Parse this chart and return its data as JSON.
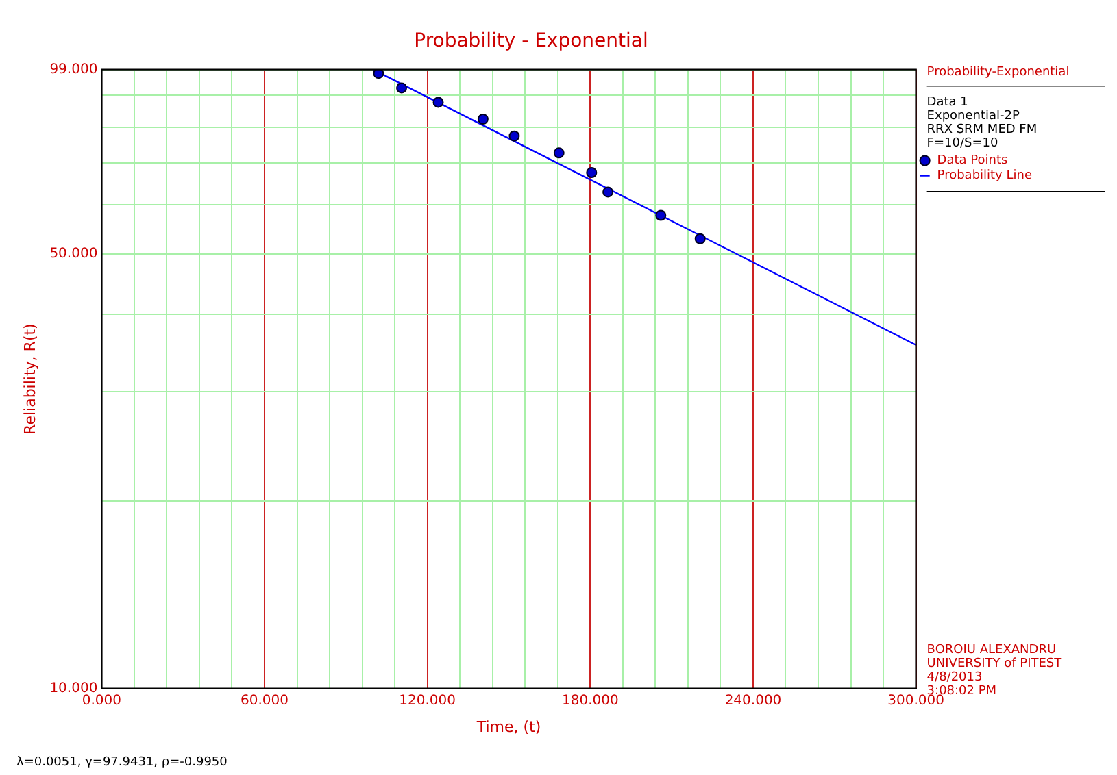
{
  "chart_data": {
    "type": "scatter",
    "title": "Probability - Exponential",
    "xlabel": "Time, (t)",
    "ylabel": "Reliability, R(t)",
    "legend_title": "Probability-Exponential",
    "annotations": [
      "Data 1",
      "Exponential-2P",
      "RRX SRM MED FM",
      "F=10/S=10",
      "BOROIU ALEXANDRU",
      "UNIVERSITY of PITEST",
      "4/8/2013",
      "3:08:02 PM",
      "λ=0.0051, γ=97.9431, ρ=-0.9950"
    ],
    "log": "y",
    "grid": true,
    "legend": "right",
    "xlim": [
      0,
      300
    ],
    "xticks": [
      {
        "value": 0,
        "label": "0.000"
      },
      {
        "value": 12,
        "label": null
      },
      {
        "value": 24,
        "label": null
      },
      {
        "value": 36,
        "label": null
      },
      {
        "value": 48,
        "label": null
      },
      {
        "value": 60,
        "label": "60.000"
      },
      {
        "value": 72,
        "label": null
      },
      {
        "value": 84,
        "label": null
      },
      {
        "value": 96,
        "label": null
      },
      {
        "value": 108,
        "label": null
      },
      {
        "value": 120,
        "label": "120.000"
      },
      {
        "value": 132,
        "label": null
      },
      {
        "value": 144,
        "label": null
      },
      {
        "value": 156,
        "label": null
      },
      {
        "value": 168,
        "label": null
      },
      {
        "value": 180,
        "label": "180.000"
      },
      {
        "value": 192,
        "label": null
      },
      {
        "value": 204,
        "label": null
      },
      {
        "value": 216,
        "label": null
      },
      {
        "value": 228,
        "label": null
      },
      {
        "value": 240,
        "label": "240.000"
      },
      {
        "value": 252,
        "label": null
      },
      {
        "value": 264,
        "label": null
      },
      {
        "value": 276,
        "label": null
      },
      {
        "value": 288,
        "label": null
      },
      {
        "value": 300,
        "label": "300.000"
      }
    ],
    "ylim": [
      10,
      99
    ],
    "yticks": [
      {
        "value": 10,
        "label": "10.000"
      },
      {
        "value": 20,
        "label": null
      },
      {
        "value": 30,
        "label": null
      },
      {
        "value": 40,
        "label": null
      },
      {
        "value": 50,
        "label": "50.000"
      },
      {
        "value": 60,
        "label": null
      },
      {
        "value": 70,
        "label": null
      },
      {
        "value": 80,
        "label": null
      },
      {
        "value": 90,
        "label": null
      },
      {
        "value": 99,
        "label": "99.000"
      }
    ],
    "series": [
      {
        "name": "Data Points",
        "type": "scatter",
        "marker": "circle",
        "color": "#0000cc",
        "x": [
          102,
          110.5,
          124,
          140.5,
          152,
          168.5,
          180.5,
          186.5,
          206,
          220.5
        ],
        "values": [
          97.6,
          92.5,
          87.7,
          82.4,
          77.4,
          72.7,
          67.6,
          62.9,
          57.7,
          52.9
        ]
      },
      {
        "name": "Probability Line",
        "type": "line",
        "marker": "none",
        "line_style": "solid",
        "color": "#0000ff",
        "x": [
          100,
          300
        ],
        "values": [
          99,
          35.7
        ]
      }
    ]
  }
}
